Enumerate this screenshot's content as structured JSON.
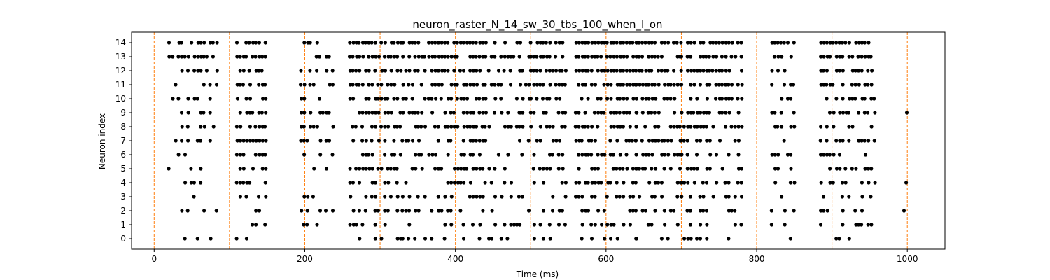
{
  "chart_data": {
    "type": "scatter",
    "title": "neuron_raster_N_14_sw_30_tbs_100_when_I_on",
    "xlabel": "Time (ms)",
    "ylabel": "Neuron index",
    "xlim": [
      -30,
      1050
    ],
    "ylim": [
      -0.75,
      14.75
    ],
    "x_ticks": [
      0,
      200,
      400,
      600,
      800,
      1000
    ],
    "x_tick_labels": [
      "0",
      "200",
      "400",
      "600",
      "800",
      "1000"
    ],
    "y_ticks": [
      0,
      1,
      2,
      3,
      4,
      5,
      6,
      7,
      8,
      9,
      10,
      11,
      12,
      13,
      14
    ],
    "y_tick_labels": [
      "0",
      "1",
      "2",
      "3",
      "4",
      "5",
      "6",
      "7",
      "8",
      "9",
      "10",
      "11",
      "12",
      "13",
      "14"
    ],
    "grid": false,
    "vlines": {
      "x": [
        0,
        100,
        200,
        300,
        400,
        500,
        600,
        700,
        800,
        900,
        1000
      ],
      "color": "#ff7f0e",
      "style": "dashed"
    },
    "marker_color": "#000000",
    "spike_windows": [
      [
        20,
        85
      ],
      [
        110,
        150
      ],
      [
        195,
        240
      ],
      [
        260,
        330
      ],
      [
        330,
        360
      ],
      [
        365,
        440
      ],
      [
        440,
        490
      ],
      [
        485,
        500
      ],
      [
        500,
        550
      ],
      [
        560,
        640
      ],
      [
        640,
        700
      ],
      [
        700,
        780
      ],
      [
        820,
        850
      ],
      [
        885,
        960
      ],
      [
        995,
        1002
      ]
    ],
    "spike_density": [
      0.45,
      0.8,
      0.55,
      0.85,
      0.7,
      0.95,
      0.6,
      0.5,
      0.85,
      0.95,
      0.85,
      0.8,
      0.7,
      0.75,
      0.15
    ],
    "spike_seed": 14
  }
}
